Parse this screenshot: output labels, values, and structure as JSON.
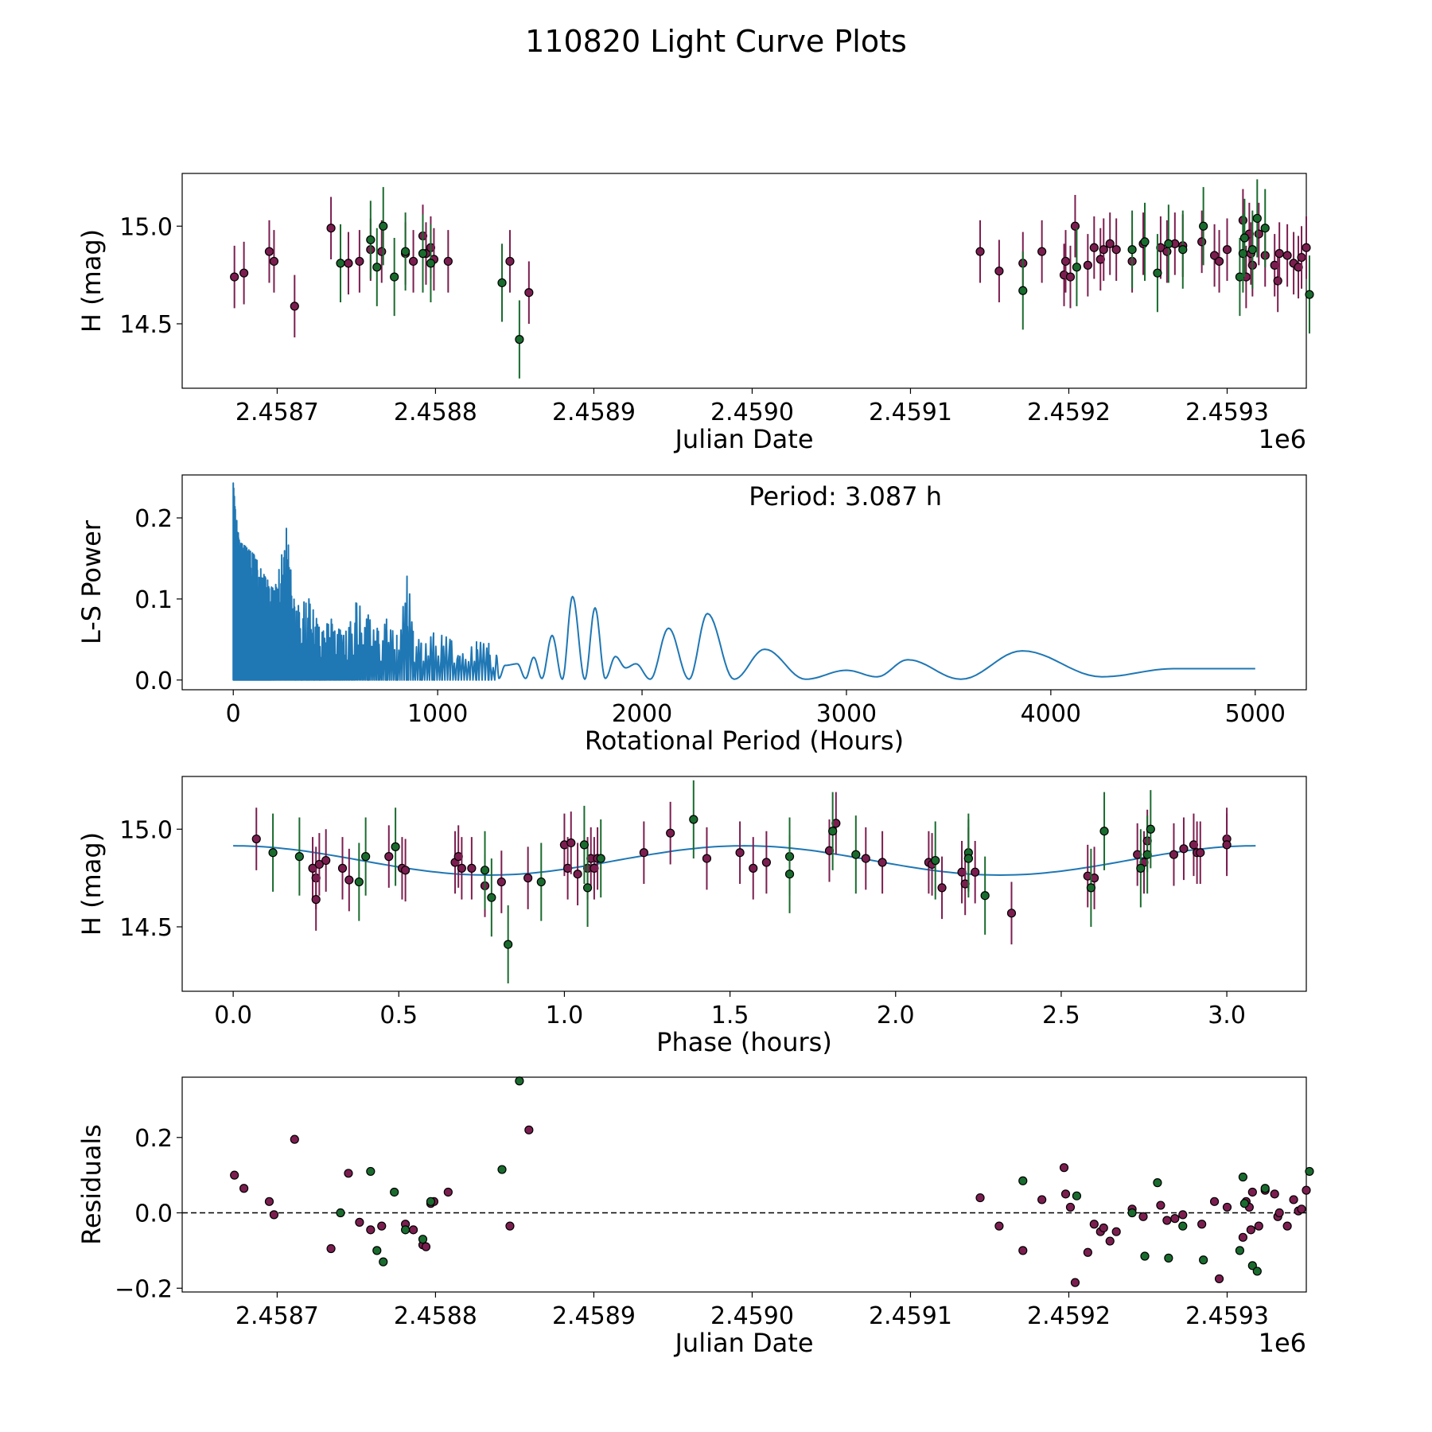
{
  "figure_title": "110820 Light Curve Plots",
  "colors": {
    "purple": "#7b1e4f",
    "green": "#1a6b2e",
    "line": "#1f77b4"
  },
  "chart_data": [
    {
      "type": "scatter",
      "title": "",
      "xlabel": "Julian Date",
      "ylabel": "H (mag)",
      "x_offset_label": "1e6",
      "xlim": [
        2.45864,
        2.45935
      ],
      "ylim": [
        14.17,
        15.27
      ],
      "y_inverted": false,
      "xticks": [
        2.4587,
        2.4588,
        2.4589,
        2.459,
        2.4591,
        2.4592,
        2.4593
      ],
      "xtick_labels": [
        "2.4587",
        "2.4588",
        "2.4589",
        "2.4590",
        "2.4591",
        "2.4592",
        "2.4593"
      ],
      "yticks": [
        14.5,
        15.0
      ],
      "ytick_labels": [
        "14.5",
        "15.0"
      ],
      "series": [
        {
          "name": "purple",
          "color": "#7b1e4f",
          "err": 0.16,
          "x": [
            2.458673,
            2.458679,
            2.458695,
            2.458698,
            2.458711,
            2.458734,
            2.458745,
            2.458752,
            2.458759,
            2.458766,
            2.458781,
            2.458786,
            2.458792,
            2.458794,
            2.458797,
            2.458799,
            2.458808,
            2.458847,
            2.458859,
            2.459144,
            2.459156,
            2.459171,
            2.459183,
            2.459197,
            2.459198,
            2.459201,
            2.459204,
            2.459212,
            2.459216,
            2.45922,
            2.459222,
            2.459226,
            2.45923,
            2.45924,
            2.459247,
            2.459258,
            2.459262,
            2.459267,
            2.459272,
            2.459284,
            2.459292,
            2.459295,
            2.4593,
            2.45931,
            2.459312,
            2.459314,
            2.459315,
            2.459316,
            2.45932,
            2.459324,
            2.45933,
            2.459332,
            2.459333,
            2.459338,
            2.459342,
            2.459345,
            2.459347,
            2.45935
          ],
          "y": [
            14.74,
            14.76,
            14.87,
            14.82,
            14.59,
            14.99,
            14.81,
            14.82,
            14.88,
            14.87,
            14.86,
            14.82,
            14.95,
            14.86,
            14.89,
            14.83,
            14.82,
            14.82,
            14.66,
            14.87,
            14.77,
            14.81,
            14.87,
            14.75,
            14.82,
            14.74,
            15.0,
            14.8,
            14.89,
            14.83,
            14.88,
            14.91,
            14.88,
            14.82,
            14.91,
            14.89,
            14.87,
            14.91,
            14.9,
            14.92,
            14.85,
            14.82,
            14.88,
            15.03,
            14.74,
            14.96,
            14.86,
            14.8,
            14.96,
            14.85,
            14.8,
            14.72,
            14.86,
            14.85,
            14.81,
            14.79,
            14.84,
            14.89
          ]
        },
        {
          "name": "green",
          "color": "#1a6b2e",
          "err": 0.2,
          "x": [
            2.45874,
            2.458759,
            2.458763,
            2.458767,
            2.458774,
            2.458781,
            2.458792,
            2.458797,
            2.458842,
            2.458853,
            2.459171,
            2.459205,
            2.45924,
            2.459248,
            2.459256,
            2.459263,
            2.459272,
            2.459285,
            2.459308,
            2.45931,
            2.459311,
            2.459316,
            2.459319,
            2.459324,
            2.459352
          ],
          "y": [
            14.81,
            14.93,
            14.79,
            15.0,
            14.74,
            14.87,
            14.86,
            14.81,
            14.71,
            14.42,
            14.67,
            14.79,
            14.88,
            14.92,
            14.76,
            14.91,
            14.88,
            15.0,
            14.74,
            14.86,
            14.94,
            14.88,
            15.04,
            14.99,
            14.65
          ]
        }
      ]
    },
    {
      "type": "line",
      "title": "",
      "xlabel": "Rotational Period (Hours)",
      "ylabel": "L-S Power",
      "annotation": "Period: 3.087 h",
      "xlim": [
        -250,
        5250
      ],
      "ylim": [
        -0.012,
        0.253
      ],
      "xticks": [
        0,
        1000,
        2000,
        3000,
        4000,
        5000
      ],
      "xtick_labels": [
        "0",
        "1000",
        "2000",
        "3000",
        "4000",
        "5000"
      ],
      "yticks": [
        0.0,
        0.1,
        0.2
      ],
      "ytick_labels": [
        "0.0",
        "0.1",
        "0.2"
      ],
      "series": [
        {
          "name": "L-S Power",
          "color": "#1f77b4",
          "peaks": [
            [
              0,
              0.243
            ],
            [
              10,
              0.21
            ],
            [
              30,
              0.17
            ],
            [
              60,
              0.165
            ],
            [
              100,
              0.155
            ],
            [
              150,
              0.13
            ],
            [
              200,
              0.11
            ],
            [
              260,
              0.187
            ],
            [
              300,
              0.09
            ],
            [
              370,
              0.1
            ],
            [
              420,
              0.065
            ],
            [
              480,
              0.075
            ],
            [
              540,
              0.055
            ],
            [
              600,
              0.095
            ],
            [
              660,
              0.08
            ],
            [
              710,
              0.06
            ],
            [
              750,
              0.075
            ],
            [
              800,
              0.055
            ],
            [
              850,
              0.128
            ],
            [
              880,
              0.06
            ],
            [
              920,
              0.045
            ],
            [
              980,
              0.058
            ],
            [
              1020,
              0.055
            ],
            [
              1060,
              0.05
            ],
            [
              1100,
              0.03
            ],
            [
              1190,
              0.047
            ],
            [
              1250,
              0.045
            ],
            [
              1330,
              0.018
            ],
            [
              1390,
              0.02
            ],
            [
              1470,
              0.028
            ],
            [
              1560,
              0.055
            ],
            [
              1660,
              0.103
            ],
            [
              1770,
              0.089
            ],
            [
              1870,
              0.029
            ],
            [
              1970,
              0.02
            ],
            [
              2130,
              0.064
            ],
            [
              2320,
              0.082
            ],
            [
              2600,
              0.038
            ],
            [
              3000,
              0.012
            ],
            [
              3300,
              0.025
            ],
            [
              3860,
              0.036
            ],
            [
              4600,
              0.014
            ],
            [
              5000,
              0.014
            ]
          ],
          "troughs": [
            [
              1300,
              0.002
            ],
            [
              1430,
              0.002
            ],
            [
              1510,
              0.002
            ],
            [
              1610,
              0.001
            ],
            [
              1720,
              0.001
            ],
            [
              1820,
              0.002
            ],
            [
              1920,
              0.015
            ],
            [
              2040,
              0.001
            ],
            [
              2230,
              0.001
            ],
            [
              2450,
              0.001
            ],
            [
              2800,
              0.001
            ],
            [
              3150,
              0.004
            ],
            [
              3560,
              0.001
            ],
            [
              4250,
              0.004
            ]
          ]
        }
      ]
    },
    {
      "type": "scatter",
      "title": "",
      "xlabel": "Phase (hours)",
      "ylabel": "H (mag)",
      "xlim": [
        -0.154,
        3.24
      ],
      "ylim": [
        14.17,
        15.27
      ],
      "xticks": [
        0.0,
        0.5,
        1.0,
        1.5,
        2.0,
        2.5,
        3.0
      ],
      "xtick_labels": [
        "0.0",
        "0.5",
        "1.0",
        "1.5",
        "2.0",
        "2.5",
        "3.0"
      ],
      "yticks": [
        14.5,
        15.0
      ],
      "ytick_labels": [
        "14.5",
        "15.0"
      ],
      "model": {
        "mean": 14.84,
        "amplitude": 0.075,
        "period_hours": 3.087,
        "phase_shift": 0.0
      },
      "series": [
        {
          "name": "purple",
          "color": "#7b1e4f",
          "err": 0.16,
          "x": [
            0.07,
            0.24,
            0.25,
            0.25,
            0.26,
            0.28,
            0.33,
            0.35,
            0.47,
            0.51,
            0.52,
            0.67,
            0.68,
            0.69,
            0.72,
            0.76,
            0.81,
            0.89,
            1.0,
            1.01,
            1.02,
            1.04,
            1.07,
            1.08,
            1.09,
            1.1,
            1.24,
            1.32,
            1.43,
            1.53,
            1.57,
            1.61,
            1.8,
            1.82,
            1.91,
            1.96,
            2.1,
            2.11,
            2.14,
            2.2,
            2.21,
            2.22,
            2.24,
            2.35,
            2.58,
            2.6,
            2.73,
            2.75,
            2.76,
            2.84,
            2.87,
            2.9,
            2.91,
            2.92,
            3.0,
            3.0
          ],
          "y": [
            14.95,
            14.8,
            14.75,
            14.64,
            14.82,
            14.84,
            14.8,
            14.74,
            14.86,
            14.8,
            14.79,
            14.83,
            14.86,
            14.8,
            14.8,
            14.71,
            14.73,
            14.75,
            14.92,
            14.8,
            14.93,
            14.77,
            14.8,
            14.85,
            14.8,
            14.85,
            14.88,
            14.98,
            14.85,
            14.88,
            14.8,
            14.83,
            14.89,
            15.03,
            14.85,
            14.83,
            14.83,
            14.82,
            14.7,
            14.78,
            14.72,
            14.85,
            14.78,
            14.57,
            14.76,
            14.75,
            14.87,
            14.83,
            14.94,
            14.87,
            14.9,
            14.92,
            14.88,
            14.88,
            14.95,
            14.92
          ]
        },
        {
          "name": "green",
          "color": "#1a6b2e",
          "err": 0.2,
          "x": [
            0.12,
            0.2,
            0.38,
            0.4,
            0.49,
            0.76,
            0.78,
            0.83,
            0.93,
            1.06,
            1.07,
            1.11,
            1.39,
            1.68,
            1.68,
            1.81,
            1.88,
            2.12,
            2.22,
            2.22,
            2.27,
            2.59,
            2.63,
            2.74,
            2.76,
            2.77
          ],
          "y": [
            14.88,
            14.86,
            14.73,
            14.86,
            14.91,
            14.79,
            14.65,
            14.41,
            14.73,
            14.92,
            14.7,
            14.85,
            15.05,
            14.86,
            14.77,
            14.99,
            14.87,
            14.84,
            14.88,
            14.85,
            14.66,
            14.7,
            14.99,
            14.8,
            14.87,
            15.0
          ]
        }
      ]
    },
    {
      "type": "scatter",
      "title": "",
      "xlabel": "Julian Date",
      "ylabel": "Residuals",
      "x_offset_label": "1e6",
      "xlim": [
        2.45864,
        2.45935
      ],
      "ylim": [
        -0.21,
        0.36
      ],
      "xticks": [
        2.4587,
        2.4588,
        2.4589,
        2.459,
        2.4591,
        2.4592,
        2.4593
      ],
      "xtick_labels": [
        "2.4587",
        "2.4588",
        "2.4589",
        "2.4590",
        "2.4591",
        "2.4592",
        "2.4593"
      ],
      "yticks": [
        -0.2,
        0.0,
        0.2
      ],
      "ytick_labels": [
        "−0.2",
        "0.0",
        "0.2"
      ],
      "reference_line": 0.0,
      "series": [
        {
          "name": "purple",
          "color": "#7b1e4f",
          "x": [
            2.458673,
            2.458679,
            2.458695,
            2.458698,
            2.458711,
            2.458734,
            2.458745,
            2.458752,
            2.458759,
            2.458766,
            2.458781,
            2.458786,
            2.458792,
            2.458794,
            2.458797,
            2.458799,
            2.458808,
            2.458847,
            2.458859,
            2.459144,
            2.459156,
            2.459171,
            2.459183,
            2.459197,
            2.459198,
            2.459201,
            2.459204,
            2.459212,
            2.459216,
            2.45922,
            2.459222,
            2.459226,
            2.45923,
            2.45924,
            2.459247,
            2.459258,
            2.459262,
            2.459267,
            2.459272,
            2.459284,
            2.459292,
            2.459295,
            2.4593,
            2.45931,
            2.459312,
            2.459314,
            2.459315,
            2.459316,
            2.45932,
            2.459324,
            2.45933,
            2.459332,
            2.459333,
            2.459338,
            2.459342,
            2.459345,
            2.459347,
            2.45935
          ],
          "y": [
            0.1,
            0.065,
            0.03,
            -0.005,
            0.195,
            -0.095,
            0.105,
            -0.025,
            -0.045,
            -0.035,
            -0.03,
            -0.045,
            -0.085,
            -0.09,
            0.025,
            0.03,
            0.055,
            -0.035,
            0.22,
            0.04,
            -0.035,
            -0.1,
            0.035,
            0.12,
            0.05,
            0.015,
            -0.185,
            -0.105,
            -0.03,
            -0.05,
            -0.04,
            -0.075,
            -0.05,
            0.01,
            -0.01,
            0.02,
            -0.02,
            -0.015,
            -0.005,
            -0.03,
            0.03,
            -0.175,
            0.015,
            -0.065,
            0.03,
            0.015,
            -0.045,
            0.055,
            -0.035,
            0.06,
            0.05,
            -0.01,
            0.0,
            -0.035,
            0.035,
            0.005,
            0.01,
            0.06
          ]
        },
        {
          "name": "green",
          "color": "#1a6b2e",
          "x": [
            2.45874,
            2.458759,
            2.458763,
            2.458767,
            2.458774,
            2.458781,
            2.458792,
            2.458797,
            2.458842,
            2.458853,
            2.459171,
            2.459205,
            2.45924,
            2.459248,
            2.459256,
            2.459263,
            2.459272,
            2.459285,
            2.459308,
            2.45931,
            2.459311,
            2.459316,
            2.459319,
            2.459324,
            2.459352
          ],
          "y": [
            0.0,
            0.11,
            -0.1,
            -0.13,
            0.055,
            -0.045,
            -0.07,
            0.03,
            0.115,
            0.35,
            0.085,
            0.045,
            0.0,
            -0.115,
            0.08,
            -0.12,
            -0.035,
            -0.125,
            -0.1,
            0.095,
            0.025,
            -0.14,
            -0.155,
            0.065,
            0.11
          ]
        }
      ]
    }
  ]
}
